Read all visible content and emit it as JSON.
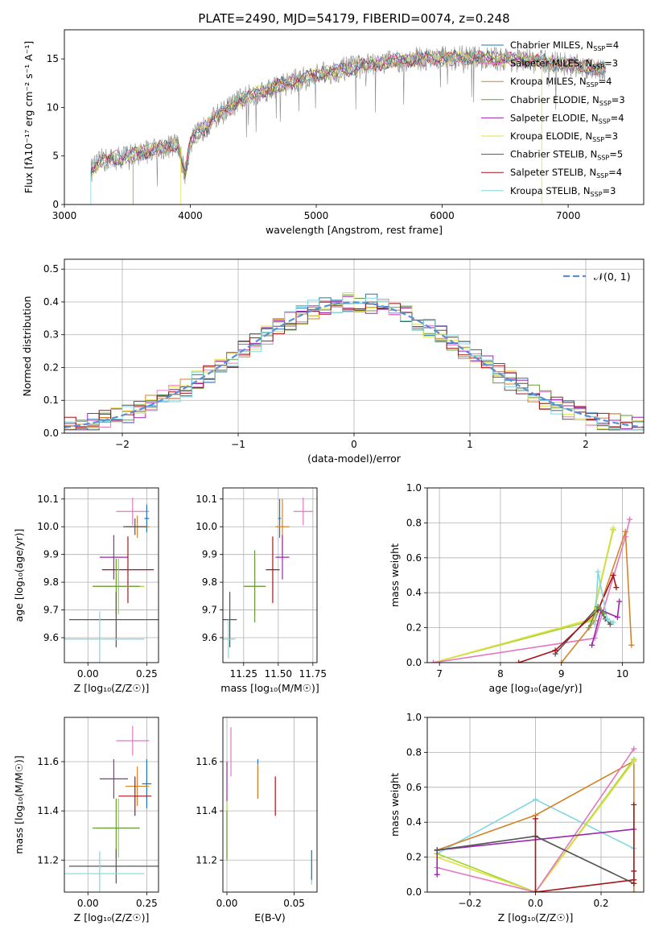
{
  "palette": {
    "chabrier_miles": "#1f77b4",
    "salpeter_miles": "#e377c2",
    "kroupa_miles": "#d2842b",
    "chabrier_elodie": "#6a9a3a",
    "salpeter_elodie": "#9b27b0",
    "kroupa_elodie": "#e0e040",
    "chabrier_stelib": "#555555",
    "salpeter_stelib": "#a8141a",
    "kroupa_stelib": "#7fd8e0",
    "lime": "#9dd62f",
    "normal_fit": "#5a8fd8"
  },
  "chart_data": [
    {
      "id": "spectrum",
      "type": "line",
      "title": "PLATE=2490, MJD=54179, FIBERID=0074, z=0.248",
      "xlabel": "wavelength [Angstrom, rest frame]",
      "ylabel": "Flux [fλ10⁻¹⁷ erg cm⁻² s⁻¹ A⁻¹]",
      "xlim": [
        3000,
        7600
      ],
      "ylim": [
        0,
        18
      ],
      "xticks": [
        3000,
        4000,
        5000,
        6000,
        7000
      ],
      "yticks": [
        0,
        5,
        10,
        15
      ],
      "grid": false,
      "legend_position": "top-right",
      "continuum_x": [
        3210,
        3300,
        3500,
        3700,
        3900,
        3960,
        4000,
        4200,
        4400,
        4600,
        4800,
        5000,
        5200,
        5400,
        5600,
        5800,
        6000,
        6200,
        6400,
        6600,
        6800,
        7000,
        7200,
        7300
      ],
      "continuum_y": [
        3.5,
        4.5,
        5.0,
        5.6,
        6.2,
        3.0,
        6.5,
        9.0,
        10.8,
        11.8,
        12.6,
        13.3,
        13.9,
        14.3,
        14.7,
        15.0,
        15.1,
        15.1,
        15.0,
        14.9,
        14.7,
        14.4,
        14.1,
        13.9
      ],
      "series": [
        {
          "name": "Chabrier MILES, N",
          "sub": "SSP",
          "suffix": "=4",
          "color_key": "chabrier_miles"
        },
        {
          "name": "Salpeter MILES, N",
          "sub": "SSP",
          "suffix": "=3",
          "color_key": "salpeter_miles"
        },
        {
          "name": "Kroupa MILES, N",
          "sub": "SSP",
          "suffix": "=4",
          "color_key": "kroupa_miles"
        },
        {
          "name": "Chabrier ELODIE, N",
          "sub": "SSP",
          "suffix": "=3",
          "color_key": "chabrier_elodie"
        },
        {
          "name": "Salpeter ELODIE, N",
          "sub": "SSP",
          "suffix": "=4",
          "color_key": "salpeter_elodie"
        },
        {
          "name": "Kroupa ELODIE, N",
          "sub": "SSP",
          "suffix": "=3",
          "color_key": "kroupa_elodie"
        },
        {
          "name": "Chabrier STELIB, N",
          "sub": "SSP",
          "suffix": "=5",
          "color_key": "chabrier_stelib"
        },
        {
          "name": "Salpeter STELIB, N",
          "sub": "SSP",
          "suffix": "=4",
          "color_key": "salpeter_stelib"
        },
        {
          "name": "Kroupa STELIB, N",
          "sub": "SSP",
          "suffix": "=3",
          "color_key": "kroupa_stelib"
        }
      ]
    },
    {
      "id": "residuals",
      "type": "histogram",
      "xlabel": "(data-model)/error",
      "ylabel": "Normed distribution",
      "xlim": [
        -2.5,
        2.5
      ],
      "ylim": [
        0,
        0.53
      ],
      "xticks": [
        -2,
        -1,
        0,
        1,
        2
      ],
      "yticks": [
        0.0,
        0.1,
        0.2,
        0.3,
        0.4,
        0.5
      ],
      "grid": true,
      "legend_position": "top-right",
      "legend_label": "𝒩(0, 1)",
      "bin_width": 0.1,
      "bin_start": -2.5
    },
    {
      "id": "age_vs_Z",
      "type": "errorbar",
      "xlabel": "Z [log₁₀(Z/Z☉)]",
      "ylabel": "age  [log₁₀(age/yr)]",
      "xlim": [
        -0.1,
        0.3
      ],
      "ylim": [
        9.51,
        10.14
      ],
      "xticks": [
        0.0,
        0.25
      ],
      "yticks": [
        9.6,
        9.7,
        9.8,
        9.9,
        10.0,
        10.1
      ],
      "grid": true,
      "points": [
        {
          "x": 0.19,
          "y": 10.055,
          "xerr": 0.07,
          "yerr": 0.05,
          "color_key": "salpeter_miles"
        },
        {
          "x": 0.25,
          "y": 10.03,
          "xerr": 0.01,
          "yerr": 0.05,
          "color_key": "chabrier_miles"
        },
        {
          "x": 0.21,
          "y": 10.0,
          "xerr": 0.05,
          "yerr": 0.04,
          "color_key": "kroupa_miles"
        },
        {
          "x": 0.2,
          "y": 10.0,
          "xerr": 0.05,
          "yerr": 0.03,
          "color_key": "chabrier_stelib"
        },
        {
          "x": 0.11,
          "y": 9.89,
          "xerr": 0.06,
          "yerr": 0.08,
          "color_key": "salpeter_elodie"
        },
        {
          "x": 0.17,
          "y": 9.845,
          "xerr": 0.11,
          "yerr": 0.12,
          "color_key": "salpeter_stelib"
        },
        {
          "x": 0.13,
          "y": 9.785,
          "xerr": 0.11,
          "yerr": 0.1,
          "color_key": "lime"
        },
        {
          "x": 0.12,
          "y": 9.785,
          "xerr": 0.1,
          "yerr": 0.1,
          "color_key": "chabrier_elodie"
        },
        {
          "x": 0.12,
          "y": 9.665,
          "xerr": 0.2,
          "yerr": 0.1,
          "color_key": "chabrier_stelib"
        },
        {
          "x": 0.05,
          "y": 9.595,
          "xerr": 0.19,
          "yerr": 0.1,
          "color_key": "kroupa_stelib"
        }
      ]
    },
    {
      "id": "age_vs_mass",
      "type": "errorbar",
      "xlabel": "mass [log₁₀(M/M☉)]",
      "ylabel": "",
      "xlim": [
        11.1,
        11.78
      ],
      "ylim": [
        9.51,
        10.14
      ],
      "xticks": [
        11.25,
        11.5,
        11.75
      ],
      "yticks": [
        9.6,
        9.7,
        9.8,
        9.9,
        10.0,
        10.1
      ],
      "grid": true,
      "points": [
        {
          "x": 11.68,
          "y": 10.055,
          "xerr": 0.07,
          "yerr": 0.05,
          "color_key": "salpeter_miles"
        },
        {
          "x": 11.51,
          "y": 10.03,
          "xerr": 0.01,
          "yerr": 0.07,
          "color_key": "chabrier_miles"
        },
        {
          "x": 11.53,
          "y": 10.0,
          "xerr": 0.05,
          "yerr": 0.1,
          "color_key": "kroupa_miles"
        },
        {
          "x": 11.53,
          "y": 9.89,
          "xerr": 0.05,
          "yerr": 0.08,
          "color_key": "salpeter_elodie"
        },
        {
          "x": 11.46,
          "y": 9.845,
          "xerr": 0.05,
          "yerr": 0.12,
          "color_key": "salpeter_stelib"
        },
        {
          "x": 11.33,
          "y": 9.785,
          "xerr": 0.08,
          "yerr": 0.1,
          "color_key": "lime"
        },
        {
          "x": 11.33,
          "y": 9.785,
          "xerr": 0.08,
          "yerr": 0.13,
          "color_key": "chabrier_elodie"
        },
        {
          "x": 11.15,
          "y": 9.665,
          "xerr": 0.05,
          "yerr": 0.1,
          "color_key": "chabrier_stelib"
        },
        {
          "x": 11.14,
          "y": 9.595,
          "xerr": 0.05,
          "yerr": 0.07,
          "color_key": "kroupa_stelib"
        }
      ]
    },
    {
      "id": "weight_vs_age",
      "type": "line",
      "xlabel": "age  [log₁₀(age/yr)]",
      "ylabel": "mass weight",
      "xlim": [
        6.8,
        10.35
      ],
      "ylim": [
        0,
        1
      ],
      "xticks": [
        7,
        8,
        9,
        10
      ],
      "yticks": [
        0.0,
        0.2,
        0.4,
        0.6,
        0.8,
        1.0
      ],
      "grid": true,
      "series": [
        {
          "color_key": "lime",
          "x": [
            6.9,
            9.5,
            9.85
          ],
          "y": [
            0.0,
            0.24,
            0.76
          ]
        },
        {
          "color_key": "kroupa_elodie",
          "x": [
            6.9,
            9.5,
            9.85
          ],
          "y": [
            0.0,
            0.25,
            0.77
          ]
        },
        {
          "color_key": "salpeter_miles",
          "x": [
            6.9,
            9.55,
            10.05,
            10.12
          ],
          "y": [
            0.0,
            0.14,
            0.72,
            0.82
          ]
        },
        {
          "color_key": "kroupa_miles",
          "x": [
            9.0,
            9.55,
            10.05,
            10.15
          ],
          "y": [
            0.0,
            0.24,
            0.75,
            0.1
          ]
        },
        {
          "color_key": "chabrier_stelib",
          "x": [
            8.9,
            9.6,
            9.72,
            9.8
          ],
          "y": [
            0.05,
            0.32,
            0.25,
            0.22
          ]
        },
        {
          "color_key": "salpeter_stelib",
          "x": [
            8.3,
            8.9,
            9.6,
            9.85,
            9.9
          ],
          "y": [
            0.0,
            0.07,
            0.3,
            0.5,
            0.43
          ]
        },
        {
          "color_key": "kroupa_stelib",
          "x": [
            9.55,
            9.6,
            9.75,
            9.85
          ],
          "y": [
            0.22,
            0.52,
            0.25,
            0.23
          ]
        },
        {
          "color_key": "salpeter_elodie",
          "x": [
            9.5,
            9.65,
            9.92,
            9.95
          ],
          "y": [
            0.1,
            0.3,
            0.26,
            0.35
          ]
        },
        {
          "color_key": "chabrier_elodie",
          "x": [
            9.45,
            9.6,
            9.7
          ],
          "y": [
            0.2,
            0.32,
            0.28
          ]
        }
      ]
    },
    {
      "id": "mass_vs_Z",
      "type": "errorbar",
      "xlabel": "Z [log₁₀(Z/Z☉)]",
      "ylabel": "mass [log₁₀(M/M☉)]",
      "xlim": [
        -0.1,
        0.3
      ],
      "ylim": [
        11.07,
        11.78
      ],
      "xticks": [
        0.0,
        0.25
      ],
      "yticks": [
        11.2,
        11.4,
        11.6
      ],
      "grid": true,
      "points": [
        {
          "x": 0.19,
          "y": 11.685,
          "xerr": 0.07,
          "yerr": 0.06,
          "color_key": "salpeter_miles"
        },
        {
          "x": 0.25,
          "y": 11.51,
          "xerr": 0.02,
          "yerr": 0.1,
          "color_key": "chabrier_miles"
        },
        {
          "x": 0.21,
          "y": 11.5,
          "xerr": 0.05,
          "yerr": 0.08,
          "color_key": "kroupa_miles"
        },
        {
          "x": 0.11,
          "y": 11.53,
          "xerr": 0.06,
          "yerr": 0.08,
          "color_key": "salpeter_elodie"
        },
        {
          "x": 0.2,
          "y": 11.46,
          "xerr": 0.07,
          "yerr": 0.08,
          "color_key": "salpeter_stelib"
        },
        {
          "x": 0.13,
          "y": 11.33,
          "xerr": 0.09,
          "yerr": 0.12,
          "color_key": "lime"
        },
        {
          "x": 0.12,
          "y": 11.33,
          "xerr": 0.1,
          "yerr": 0.12,
          "color_key": "chabrier_elodie"
        },
        {
          "x": 0.12,
          "y": 11.175,
          "xerr": 0.2,
          "yerr": 0.07,
          "color_key": "chabrier_stelib"
        },
        {
          "x": 0.05,
          "y": 11.145,
          "xerr": 0.19,
          "yerr": 0.09,
          "color_key": "kroupa_stelib"
        }
      ]
    },
    {
      "id": "mass_vs_EBV",
      "type": "errorbar",
      "xlabel": "E(B-V)",
      "ylabel": "",
      "xlim": [
        -0.003,
        0.067
      ],
      "ylim": [
        11.07,
        11.78
      ],
      "xticks": [
        0.0,
        0.05
      ],
      "yticks": [
        11.2,
        11.4,
        11.6
      ],
      "grid": true,
      "points": [
        {
          "x": 0.003,
          "y": 11.64,
          "xerr": 0,
          "yerr": 0.1,
          "color_key": "salpeter_miles"
        },
        {
          "x": 0.023,
          "y": 11.53,
          "xerr": 0,
          "yerr": 0.08,
          "color_key": "chabrier_miles"
        },
        {
          "x": 0.023,
          "y": 11.52,
          "xerr": 0,
          "yerr": 0.07,
          "color_key": "kroupa_miles"
        },
        {
          "x": 0.036,
          "y": 11.46,
          "xerr": 0,
          "yerr": 0.08,
          "color_key": "salpeter_stelib"
        },
        {
          "x": 0.0,
          "y": 11.33,
          "xerr": 0,
          "yerr": 0.12,
          "color_key": "lime"
        },
        {
          "x": 0.0,
          "y": 11.52,
          "xerr": 0,
          "yerr": 0.08,
          "color_key": "salpeter_elodie"
        },
        {
          "x": 0.0,
          "y": 11.3,
          "xerr": 0,
          "yerr": 0.1,
          "color_key": "chabrier_elodie"
        },
        {
          "x": 0.063,
          "y": 11.17,
          "xerr": 0,
          "yerr": 0.07,
          "color_key": "kroupa_stelib"
        },
        {
          "x": 0.063,
          "y": 11.18,
          "xerr": 0,
          "yerr": 0.06,
          "color_key": "chabrier_miles"
        }
      ]
    },
    {
      "id": "weight_vs_Z",
      "type": "line",
      "xlabel": "Z [log₁₀(Z/Z☉)]",
      "ylabel": "mass weight",
      "xlim": [
        -0.33,
        0.33
      ],
      "ylim": [
        0,
        1
      ],
      "xticks": [
        -0.2,
        0.0,
        0.2
      ],
      "yticks": [
        0.0,
        0.2,
        0.4,
        0.6,
        0.8,
        1.0
      ],
      "grid": true,
      "series": [
        {
          "color_key": "kroupa_stelib",
          "x": [
            -0.3,
            0.0,
            0.3
          ],
          "y": [
            0.22,
            0.53,
            0.25
          ]
        },
        {
          "color_key": "kroupa_miles",
          "x": [
            -0.3,
            0.0,
            0.3
          ],
          "y": [
            0.24,
            0.44,
            0.75
          ]
        },
        {
          "color_key": "kroupa_miles",
          "x": [
            0.0,
            0.3,
            0.3
          ],
          "y": [
            0.0,
            0.75,
            0.0
          ]
        },
        {
          "color_key": "lime",
          "x": [
            -0.3,
            0.0,
            0.3
          ],
          "y": [
            0.22,
            0.0,
            0.76
          ]
        },
        {
          "color_key": "kroupa_elodie",
          "x": [
            -0.3,
            0.0,
            0.3
          ],
          "y": [
            0.2,
            0.0,
            0.75
          ]
        },
        {
          "color_key": "salpeter_miles",
          "x": [
            -0.3,
            0.0,
            0.3
          ],
          "y": [
            0.14,
            0.0,
            0.82
          ]
        },
        {
          "color_key": "salpeter_elodie",
          "x": [
            -0.3,
            0.3
          ],
          "y": [
            0.24,
            0.36
          ]
        },
        {
          "color_key": "salpeter_elodie",
          "x": [
            -0.3,
            -0.3
          ],
          "y": [
            0.1,
            0.24
          ]
        },
        {
          "color_key": "chabrier_stelib",
          "x": [
            -0.3,
            0.0,
            0.3
          ],
          "y": [
            0.24,
            0.32,
            0.05
          ]
        },
        {
          "color_key": "salpeter_stelib",
          "x": [
            0.0,
            0.0,
            0.3,
            0.3
          ],
          "y": [
            0.42,
            0.0,
            0.07,
            0.5
          ]
        },
        {
          "color_key": "salpeter_stelib",
          "x": [
            0.3,
            0.3
          ],
          "y": [
            0.05,
            0.12
          ]
        }
      ]
    }
  ]
}
